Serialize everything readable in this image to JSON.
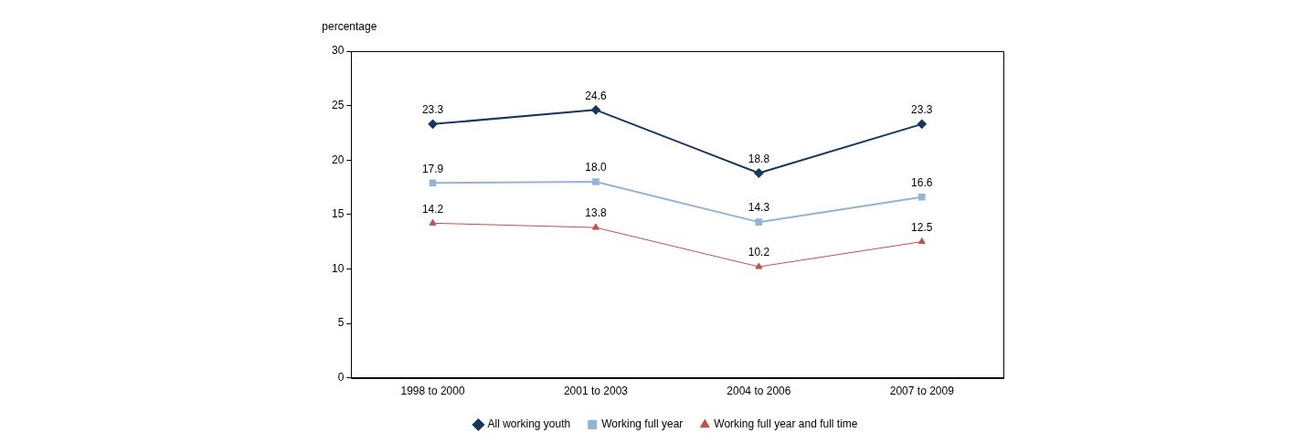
{
  "chart_data": {
    "type": "line",
    "ylabel": "percentage",
    "categories": [
      "1998 to 2000",
      "2001 to 2003",
      "2004 to 2006",
      "2007 to 2009"
    ],
    "series": [
      {
        "name": "All working youth",
        "color": "#17375e",
        "marker": "diamond",
        "values": [
          23.3,
          24.6,
          18.8,
          23.3
        ],
        "value_labels": [
          "23.3",
          "24.6",
          "18.8",
          "23.3"
        ]
      },
      {
        "name": "Working full year",
        "color": "#95b3d7",
        "marker": "square",
        "values": [
          17.9,
          18.0,
          14.3,
          16.6
        ],
        "value_labels": [
          "17.9",
          "18.0",
          "14.3",
          "16.6"
        ]
      },
      {
        "name": "Working full year and full time",
        "color": "#c0504d",
        "marker": "triangle",
        "values": [
          14.2,
          13.8,
          10.2,
          12.5
        ],
        "value_labels": [
          "14.2",
          "13.8",
          "10.2",
          "12.5"
        ]
      }
    ],
    "ylim": [
      0,
      30
    ],
    "yticks": [
      0,
      5,
      10,
      15,
      20,
      25,
      30
    ],
    "grid": false,
    "legend": "bottom",
    "line_style": "solid"
  }
}
